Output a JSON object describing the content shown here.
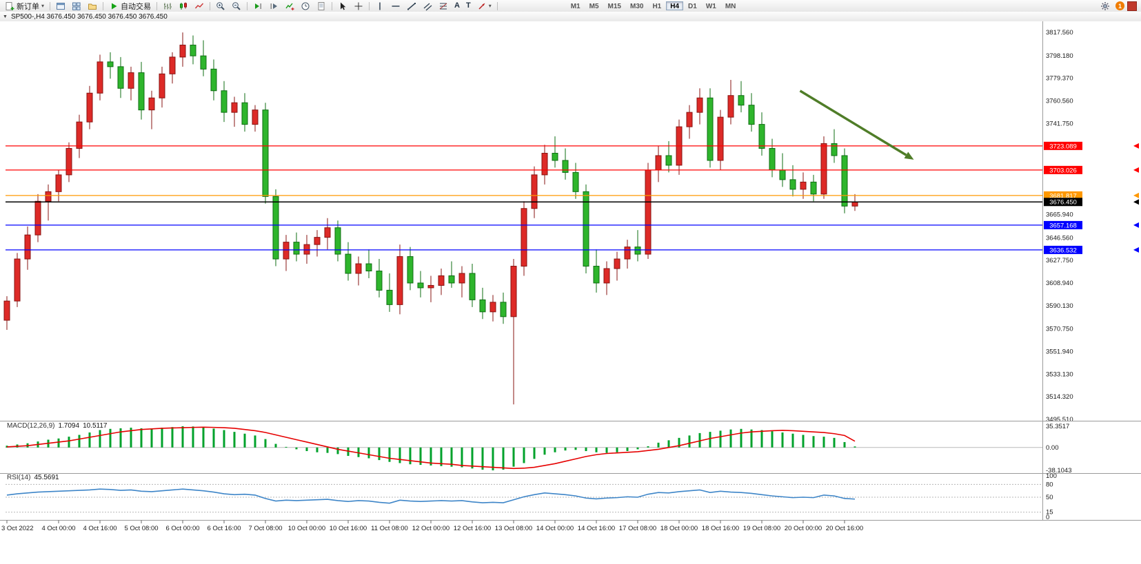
{
  "toolbar": {
    "new_order_label": "新订单",
    "autotrading_label": "自动交易",
    "caret": "▾",
    "text_tool_glyph": "A",
    "label_tool_glyph": "T",
    "timeframes": [
      "M1",
      "M5",
      "M15",
      "M30",
      "H1",
      "H4",
      "D1",
      "W1",
      "MN"
    ],
    "active_timeframe": "H4",
    "notification_count": "1"
  },
  "titlebar": {
    "collapse_glyph": "▼",
    "title": "SP500-,H4  3676.450 3676.450 3676.450 3676.450"
  },
  "indicators": {
    "macd": {
      "name": "MACD(12,26,9)",
      "main_value": "1.7094",
      "signal_value": "10.5117"
    },
    "rsi": {
      "name": "RSI(14)",
      "value": "45.5691"
    }
  },
  "colors": {
    "bull": "#dd2a27",
    "bull_border": "#871311",
    "bear": "#2eb52c",
    "bear_border": "#0e6d12",
    "macd_hist": "#00a22b",
    "macd_signal": "#e60000",
    "rsi_line": "#3d85c8",
    "arrow": "#4f7d28",
    "axis_text": "#1a1a1a"
  },
  "chart_data": [
    {
      "type": "candlestick",
      "symbol": "SP500-",
      "period": "H4",
      "ylim": [
        3495.51,
        3817.56
      ],
      "y_axis_labels": [
        "3817.560",
        "3798.180",
        "3779.370",
        "3760.560",
        "3741.750",
        "3665.940",
        "3646.560",
        "3627.750",
        "3608.940",
        "3590.130",
        "3570.750",
        "3551.940",
        "3533.130",
        "3514.320",
        "3495.510"
      ],
      "hlines": [
        {
          "price": 3723.089,
          "color": "#ff0000",
          "tag": "3723.089"
        },
        {
          "price": 3703.026,
          "color": "#ff0000",
          "tag": "3703.026"
        },
        {
          "price": 3681.817,
          "color": "#ff9800",
          "tag": "3681.817"
        },
        {
          "price": 3676.45,
          "color": "#000000",
          "tag": "3676.450",
          "current": true
        },
        {
          "price": 3657.168,
          "color": "#0000ff",
          "tag": "3657.168"
        },
        {
          "price": 3636.532,
          "color": "#0000ff",
          "tag": "3636.532"
        }
      ],
      "arrow_annotation": {
        "from_bar": 76.7,
        "from_price": 3768.9,
        "to_bar": 87.7,
        "to_price": 3711.6
      },
      "time_ticks": [
        {
          "label": "3 Oct 2022",
          "bar": 0
        },
        {
          "label": "4 Oct 00:00",
          "bar": 5
        },
        {
          "label": "4 Oct 16:00",
          "bar": 9
        },
        {
          "label": "5 Oct 08:00",
          "bar": 13
        },
        {
          "label": "6 Oct 00:00",
          "bar": 17
        },
        {
          "label": "6 Oct 16:00",
          "bar": 21
        },
        {
          "label": "7 Oct 08:00",
          "bar": 25
        },
        {
          "label": "10 Oct 00:00",
          "bar": 29
        },
        {
          "label": "10 Oct 16:00",
          "bar": 33
        },
        {
          "label": "11 Oct 08:00",
          "bar": 37
        },
        {
          "label": "12 Oct 00:00",
          "bar": 41
        },
        {
          "label": "12 Oct 16:00",
          "bar": 45
        },
        {
          "label": "13 Oct 08:00",
          "bar": 49
        },
        {
          "label": "14 Oct 00:00",
          "bar": 53
        },
        {
          "label": "14 Oct 16:00",
          "bar": 57
        },
        {
          "label": "17 Oct 08:00",
          "bar": 61
        },
        {
          "label": "18 Oct 00:00",
          "bar": 65
        },
        {
          "label": "18 Oct 16:00",
          "bar": 69
        },
        {
          "label": "19 Oct 08:00",
          "bar": 73
        },
        {
          "label": "20 Oct 00:00",
          "bar": 77
        },
        {
          "label": "20 Oct 16:00",
          "bar": 81
        }
      ],
      "ohlc": [
        [
          3578,
          3598,
          3570,
          3594
        ],
        [
          3594,
          3634,
          3589,
          3629
        ],
        [
          3629,
          3656,
          3620,
          3649
        ],
        [
          3649,
          3683,
          3643,
          3677
        ],
        [
          3677,
          3691,
          3661,
          3685
        ],
        [
          3685,
          3703,
          3677,
          3699
        ],
        [
          3699,
          3726,
          3693,
          3721
        ],
        [
          3721,
          3749,
          3713,
          3743
        ],
        [
          3743,
          3773,
          3737,
          3767
        ],
        [
          3767,
          3799,
          3761,
          3793
        ],
        [
          3793,
          3801,
          3779,
          3789
        ],
        [
          3789,
          3797,
          3763,
          3771
        ],
        [
          3771,
          3789,
          3761,
          3784
        ],
        [
          3784,
          3793,
          3745,
          3753
        ],
        [
          3753,
          3769,
          3737,
          3763
        ],
        [
          3763,
          3789,
          3755,
          3783
        ],
        [
          3783,
          3801,
          3775,
          3797
        ],
        [
          3797,
          3817.5,
          3789,
          3807
        ],
        [
          3807,
          3815,
          3791,
          3798
        ],
        [
          3798,
          3811,
          3781,
          3787
        ],
        [
          3787,
          3795,
          3761,
          3769
        ],
        [
          3769,
          3777,
          3743,
          3751
        ],
        [
          3751,
          3764,
          3739,
          3759
        ],
        [
          3759,
          3767,
          3735,
          3741
        ],
        [
          3741,
          3757,
          3735,
          3753
        ],
        [
          3753,
          3759,
          3675,
          3681
        ],
        [
          3681,
          3687,
          3623,
          3629
        ],
        [
          3629,
          3649,
          3619,
          3643
        ],
        [
          3643,
          3651,
          3627,
          3633
        ],
        [
          3633,
          3649,
          3625,
          3641
        ],
        [
          3641,
          3653,
          3631,
          3647
        ],
        [
          3647,
          3663,
          3637,
          3655
        ],
        [
          3655,
          3661,
          3627,
          3633
        ],
        [
          3633,
          3643,
          3611,
          3617
        ],
        [
          3617,
          3631,
          3607,
          3625
        ],
        [
          3625,
          3637,
          3613,
          3619
        ],
        [
          3619,
          3629,
          3597,
          3603
        ],
        [
          3603,
          3617,
          3585,
          3591
        ],
        [
          3591,
          3641,
          3583,
          3631
        ],
        [
          3631,
          3639,
          3603,
          3609
        ],
        [
          3609,
          3619,
          3597,
          3605
        ],
        [
          3605,
          3615,
          3593,
          3607
        ],
        [
          3607,
          3621,
          3599,
          3615
        ],
        [
          3615,
          3627,
          3605,
          3609
        ],
        [
          3609,
          3623,
          3597,
          3617
        ],
        [
          3617,
          3625,
          3589,
          3595
        ],
        [
          3595,
          3605,
          3579,
          3585
        ],
        [
          3585,
          3599,
          3577,
          3593
        ],
        [
          3593,
          3601,
          3575,
          3581
        ],
        [
          3581,
          3629,
          3508,
          3623
        ],
        [
          3623,
          3677,
          3615,
          3671
        ],
        [
          3671,
          3706,
          3663,
          3699
        ],
        [
          3699,
          3724,
          3691,
          3717
        ],
        [
          3717,
          3731,
          3705,
          3711
        ],
        [
          3711,
          3721,
          3695,
          3701
        ],
        [
          3701,
          3709,
          3679,
          3685
        ],
        [
          3685,
          3691,
          3617,
          3623
        ],
        [
          3623,
          3637,
          3601,
          3609
        ],
        [
          3609,
          3627,
          3599,
          3621
        ],
        [
          3621,
          3635,
          3611,
          3629
        ],
        [
          3629,
          3645,
          3621,
          3639
        ],
        [
          3639,
          3653,
          3627,
          3633
        ],
        [
          3633,
          3709,
          3629,
          3703
        ],
        [
          3703,
          3723,
          3693,
          3715
        ],
        [
          3715,
          3727,
          3701,
          3707
        ],
        [
          3707,
          3745,
          3699,
          3739
        ],
        [
          3739,
          3757,
          3729,
          3751
        ],
        [
          3751,
          3771,
          3741,
          3763
        ],
        [
          3763,
          3771,
          3705,
          3711
        ],
        [
          3711,
          3753,
          3703,
          3747
        ],
        [
          3747,
          3778,
          3741,
          3765
        ],
        [
          3765,
          3777,
          3751,
          3757
        ],
        [
          3757,
          3767,
          3735,
          3741
        ],
        [
          3741,
          3751,
          3715,
          3721
        ],
        [
          3721,
          3729,
          3697,
          3703
        ],
        [
          3703,
          3717,
          3689,
          3695
        ],
        [
          3695,
          3707,
          3681,
          3687
        ],
        [
          3687,
          3701,
          3679,
          3693
        ],
        [
          3693,
          3699,
          3677,
          3683
        ],
        [
          3683,
          3731,
          3679,
          3725
        ],
        [
          3725,
          3737,
          3709,
          3715
        ],
        [
          3715,
          3721,
          3667,
          3673
        ],
        [
          3673,
          3683,
          3669,
          3676.45
        ]
      ]
    },
    {
      "type": "bar",
      "subtype": "macd",
      "title": "MACD(12,26,9)",
      "y_labels": [
        "35.3517",
        "0.00",
        "-38.1043"
      ],
      "ylim": [
        -38.1043,
        35.3517
      ],
      "histogram": [
        3,
        5,
        7,
        10,
        13,
        15,
        18,
        21,
        25,
        29,
        31,
        32,
        33,
        32,
        31,
        33,
        34,
        35.35,
        35,
        33.5,
        31.5,
        29,
        26,
        23,
        20,
        14,
        6,
        1,
        -3,
        -6,
        -8,
        -9,
        -11,
        -14,
        -16,
        -18,
        -21,
        -24,
        -26,
        -28,
        -29,
        -30,
        -31,
        -32,
        -33,
        -35,
        -37,
        -38.1,
        -37,
        -32,
        -26,
        -19,
        -12,
        -8,
        -5,
        -4,
        -6,
        -8,
        -9,
        -8,
        -6,
        -3,
        2,
        8,
        12,
        16,
        20,
        24,
        26,
        28,
        30,
        31,
        30,
        29,
        27,
        25,
        23,
        21,
        19,
        18,
        16,
        9,
        1.71
      ],
      "signal": [
        1,
        2,
        3,
        5,
        7,
        9,
        11,
        14,
        17,
        20,
        23,
        26,
        28,
        30,
        31,
        32,
        32.5,
        33,
        33.5,
        33.8,
        33.5,
        33,
        32,
        30,
        28,
        25,
        21,
        17,
        13,
        9,
        5,
        1,
        -3,
        -6,
        -9,
        -12,
        -15,
        -18,
        -20,
        -22,
        -24,
        -26,
        -27,
        -28,
        -30,
        -31,
        -32,
        -33,
        -34,
        -35,
        -34.5,
        -33,
        -30,
        -27,
        -23,
        -19,
        -15,
        -12,
        -10,
        -9,
        -8,
        -7,
        -5,
        -3,
        0,
        3,
        7,
        11,
        15,
        18,
        21,
        24,
        26,
        27,
        28,
        28.5,
        28,
        27,
        26,
        25,
        23,
        20,
        10.51
      ]
    },
    {
      "type": "line",
      "subtype": "rsi",
      "title": "RSI(14)",
      "ylim": [
        0,
        100
      ],
      "levels": [
        100,
        80,
        50,
        15,
        0
      ],
      "dashed_levels": [
        80,
        50,
        15
      ],
      "values": [
        55,
        58,
        60,
        62,
        63,
        64,
        65,
        66,
        67,
        69,
        68,
        66,
        67,
        64,
        63,
        65,
        67,
        69,
        67,
        65,
        62,
        58,
        56,
        57,
        55,
        47,
        41,
        43,
        42,
        43,
        44,
        45,
        42,
        40,
        42,
        41,
        38,
        36,
        43,
        41,
        40,
        41,
        42,
        41,
        42,
        39,
        37,
        38,
        37,
        44,
        51,
        56,
        60,
        58,
        56,
        53,
        48,
        46,
        48,
        49,
        51,
        50,
        57,
        61,
        60,
        63,
        65,
        67,
        61,
        64,
        62,
        61,
        59,
        56,
        53,
        51,
        49,
        50,
        49,
        55,
        53,
        47,
        45.57
      ]
    }
  ]
}
